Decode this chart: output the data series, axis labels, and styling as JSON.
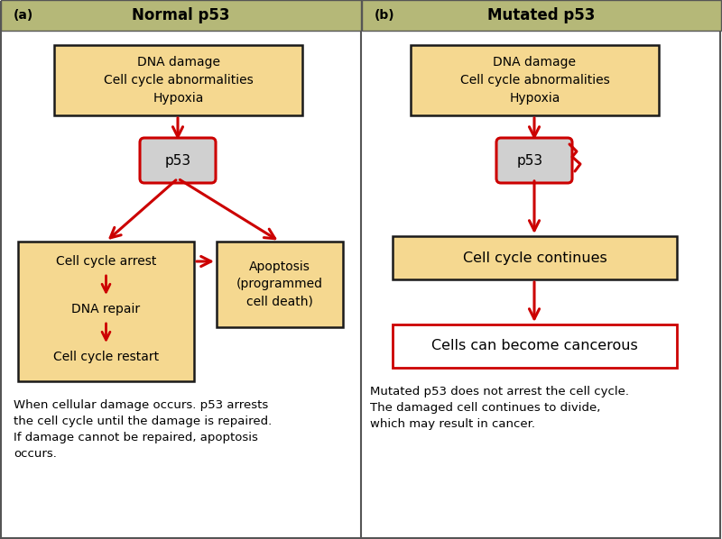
{
  "fig_width": 8.0,
  "fig_height": 5.98,
  "bg_color": "#ffffff",
  "header_color": "#b5b878",
  "box_fill": "#f5d890",
  "box_edge": "#1a1a1a",
  "arrow_color": "#cc0000",
  "border_color": "#555555",
  "p53_fill": "#d0d0d0",
  "cancer_box_edge": "#cc0000",
  "cancer_box_fill": "#ffffff",
  "panel_a_title": "Normal p53",
  "panel_b_title": "Mutated p53",
  "label_a": "(a)",
  "label_b": "(b)",
  "box1_text": "DNA damage\nCell cycle abnormalities\nHypoxia",
  "p53a_text": "p53",
  "p53b_text": "p53",
  "box2a_lines": [
    "Cell cycle arrest",
    "DNA repair",
    "Cell cycle restart"
  ],
  "box3a_text": "Apoptosis\n(programmed\ncell death)",
  "box2b_text": "Cell cycle continues",
  "box3b_text": "Cells can become cancerous",
  "caption_a": "When cellular damage occurs. p53 arrests\nthe cell cycle until the damage is repaired.\nIf damage cannot be repaired, apoptosis\noccurs.",
  "caption_b": "Mutated p53 does not arrest the cell cycle.\nThe damaged cell continues to divide,\nwhich may result in cancer.",
  "font_size_title": 12,
  "font_size_box": 10,
  "font_size_p53": 11,
  "font_size_caption": 9.5,
  "font_size_label": 10
}
